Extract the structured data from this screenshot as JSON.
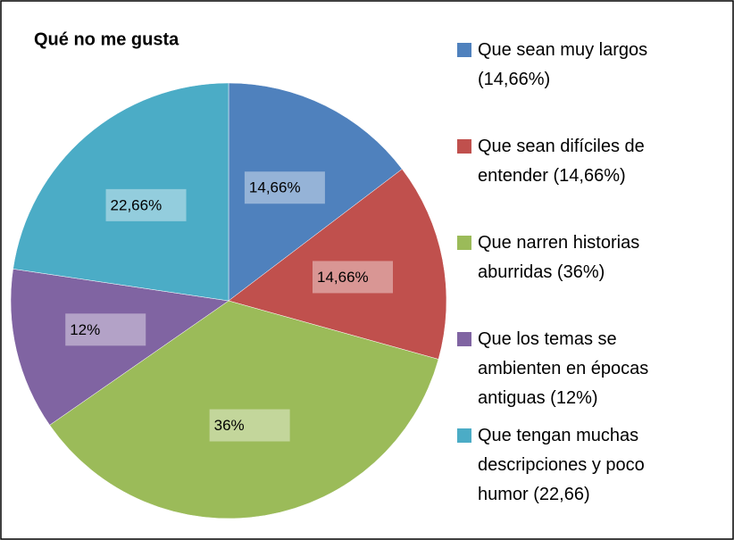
{
  "chart_data": {
    "type": "pie",
    "title": "Qué no me gusta",
    "categories": [
      "Que sean muy largos (14,66%)",
      "Que sean difíciles de entender (14,66%)",
      "Que narren historias aburridas (36%)",
      "Que los temas se ambienten en épocas antiguas (12%)",
      "Que tengan muchas descripciones y poco humor (22,66)"
    ],
    "values": [
      14.66,
      14.66,
      36,
      12,
      22.66
    ],
    "value_labels": [
      "14,66%",
      "14,66%",
      "36%",
      "12%",
      "22,66%"
    ],
    "colors": [
      "#4f81bd",
      "#c0504d",
      "#9bbb59",
      "#8064a2",
      "#4bacc6"
    ],
    "legend": "right"
  }
}
